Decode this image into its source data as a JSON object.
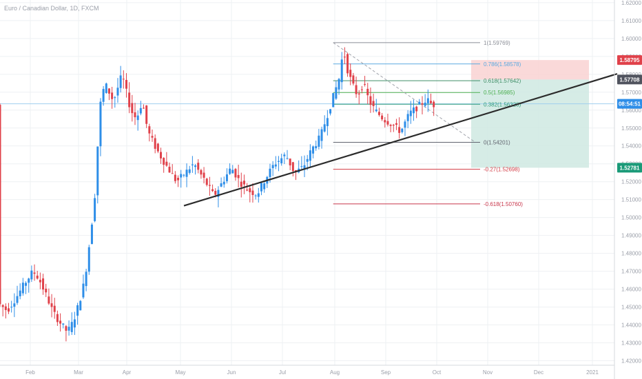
{
  "title": "Euro / Canadian Dollar, 1D, FXCM",
  "colors": {
    "up": "#2e8ee8",
    "down": "#e0414a",
    "grid": "#eef0f3",
    "axis": "#9a9ea8",
    "trendline": "#2b2b2b",
    "current_line": "#9fcfee",
    "stop_zone": "#f9d2d2",
    "target_zone": "#cfe9e2"
  },
  "badges": {
    "stop": {
      "text": "1.58795",
      "color": "#e0414a"
    },
    "entry": {
      "text": "1.57708",
      "color": "#50535e"
    },
    "timer": {
      "text": "08:54:51",
      "color": "#2e8ee8"
    },
    "target": {
      "text": "1.52781",
      "color": "#1a9a78"
    }
  },
  "chart_data": {
    "type": "candlestick",
    "title": "Euro / Canadian Dollar, 1D, FXCM",
    "symbol": "EURCAD",
    "timeframe": "1D",
    "exchange": "FXCM",
    "x_ticks": [
      "Feb",
      "Mar",
      "Apr",
      "May",
      "Jun",
      "Jul",
      "Aug",
      "Sep",
      "Oct",
      "Nov",
      "Dec",
      "2021"
    ],
    "y_ticks": [
      "1.42000",
      "1.43000",
      "1.44000",
      "1.45000",
      "1.46000",
      "1.47000",
      "1.48000",
      "1.49000",
      "1.50000",
      "1.51000",
      "1.52000",
      "1.53000",
      "1.54000",
      "1.55000",
      "1.56000",
      "1.57000",
      "1.58000",
      "1.59000",
      "1.60000",
      "1.61000",
      "1.62000"
    ],
    "ylim": [
      1.4175,
      1.6215
    ],
    "current_price": 1.5635,
    "price_path": [
      [
        0,
        1.452
      ],
      [
        3,
        1.448
      ],
      [
        6,
        1.455
      ],
      [
        9,
        1.463
      ],
      [
        12,
        1.47
      ],
      [
        14,
        1.466
      ],
      [
        17,
        1.455
      ],
      [
        19,
        1.447
      ],
      [
        22,
        1.44
      ],
      [
        24,
        1.436
      ],
      [
        26,
        1.442
      ],
      [
        28,
        1.452
      ],
      [
        30,
        1.465
      ],
      [
        31,
        1.478
      ],
      [
        32,
        1.49
      ],
      [
        33,
        1.505
      ],
      [
        34,
        1.52
      ],
      [
        35,
        1.56
      ],
      [
        37,
        1.575
      ],
      [
        40,
        1.565
      ],
      [
        43,
        1.58
      ],
      [
        46,
        1.56
      ],
      [
        48,
        1.555
      ],
      [
        50,
        1.565
      ],
      [
        52,
        1.548
      ],
      [
        55,
        1.538
      ],
      [
        58,
        1.53
      ],
      [
        62,
        1.52
      ],
      [
        65,
        1.525
      ],
      [
        68,
        1.53
      ],
      [
        72,
        1.52
      ],
      [
        75,
        1.512
      ],
      [
        78,
        1.52
      ],
      [
        81,
        1.528
      ],
      [
        84,
        1.52
      ],
      [
        87,
        1.515
      ],
      [
        90,
        1.513
      ],
      [
        93,
        1.522
      ],
      [
        96,
        1.53
      ],
      [
        100,
        1.535
      ],
      [
        103,
        1.525
      ],
      [
        106,
        1.528
      ],
      [
        109,
        1.538
      ],
      [
        112,
        1.545
      ],
      [
        115,
        1.56
      ],
      [
        117,
        1.57
      ],
      [
        119,
        1.58
      ],
      [
        120,
        1.596
      ],
      [
        121,
        1.585
      ],
      [
        123,
        1.575
      ],
      [
        125,
        1.568
      ],
      [
        127,
        1.575
      ],
      [
        129,
        1.565
      ],
      [
        131,
        1.56
      ],
      [
        134,
        1.555
      ],
      [
        137,
        1.552
      ],
      [
        140,
        1.548
      ],
      [
        143,
        1.558
      ],
      [
        146,
        1.562
      ],
      [
        149,
        1.566
      ],
      [
        151,
        1.563
      ]
    ],
    "trendline": {
      "start": [
        "May",
        1.5066
      ],
      "end": [
        "2021",
        1.5795
      ]
    },
    "fibonacci": {
      "swing_high": 1.59769,
      "swing_low": 1.54201,
      "levels": [
        {
          "label": "1(1.59769)",
          "value": 1.59769,
          "color": "#8a8d96"
        },
        {
          "label": "0.786(1.58578)",
          "value": 1.58578,
          "color": "#5aa9e0"
        },
        {
          "label": "0.618(1.57642)",
          "value": 1.57642,
          "color": "#3f8d66"
        },
        {
          "label": "0.5(1.56985)",
          "value": 1.56985,
          "color": "#4caf50"
        },
        {
          "label": "0.382(1.56328)",
          "value": 1.56328,
          "color": "#2e9b7a"
        },
        {
          "label": "0(1.54201)",
          "value": 1.54201,
          "color": "#60636e"
        },
        {
          "label": "-0.27(1.52698)",
          "value": 1.52698,
          "color": "#d23a43"
        },
        {
          "label": "-0.618(1.50760)",
          "value": 1.5076,
          "color": "#c8354a"
        }
      ]
    },
    "position": {
      "entry": 1.57708,
      "stop": 1.58795,
      "target": 1.52781,
      "x_start": "Oct"
    }
  }
}
